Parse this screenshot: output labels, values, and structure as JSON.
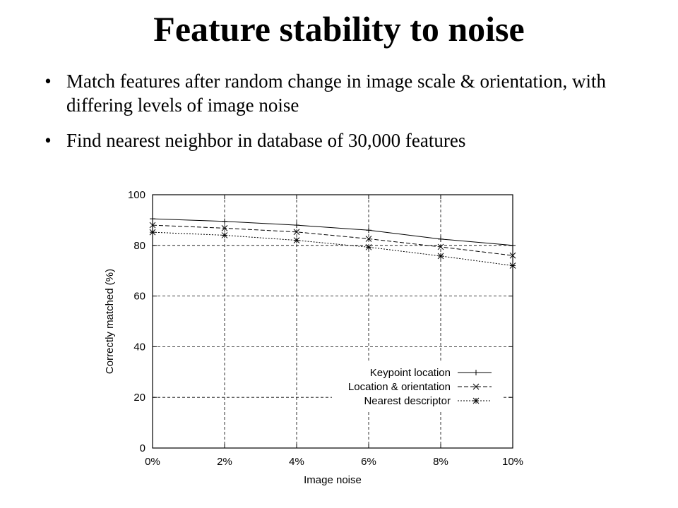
{
  "slide": {
    "title": "Feature stability to noise",
    "bullets": [
      "Match features after random change in image scale & orientation, with differing levels of image noise",
      "Find nearest neighbor in database of 30,000 features"
    ],
    "bullet_glyph": "•"
  },
  "chart_data": {
    "type": "line",
    "xlabel": "Image noise",
    "ylabel": "Correctly matched (%)",
    "x": [
      0,
      2,
      4,
      6,
      8,
      10
    ],
    "x_tick_labels": [
      "0%",
      "2%",
      "4%",
      "6%",
      "8%",
      "10%"
    ],
    "y_ticks": [
      0,
      20,
      40,
      60,
      80,
      100
    ],
    "y_tick_labels": [
      "0",
      "20",
      "40",
      "60",
      "80",
      "100"
    ],
    "xlim": [
      0,
      10
    ],
    "ylim": [
      0,
      100
    ],
    "grid": true,
    "legend_position": "bottom-right",
    "series": [
      {
        "name": "Keypoint location",
        "values": [
          90.5,
          89.5,
          88,
          86,
          82.5,
          80
        ],
        "marker": "+",
        "dash": "solid"
      },
      {
        "name": "Location & orientation",
        "values": [
          88,
          86.8,
          85.3,
          82.6,
          79.4,
          76
        ],
        "marker": "x",
        "dash": "dashed"
      },
      {
        "name": "Nearest descriptor",
        "values": [
          85.2,
          84,
          82,
          79.3,
          75.8,
          72
        ],
        "marker": "*",
        "dash": "dotted"
      }
    ]
  }
}
